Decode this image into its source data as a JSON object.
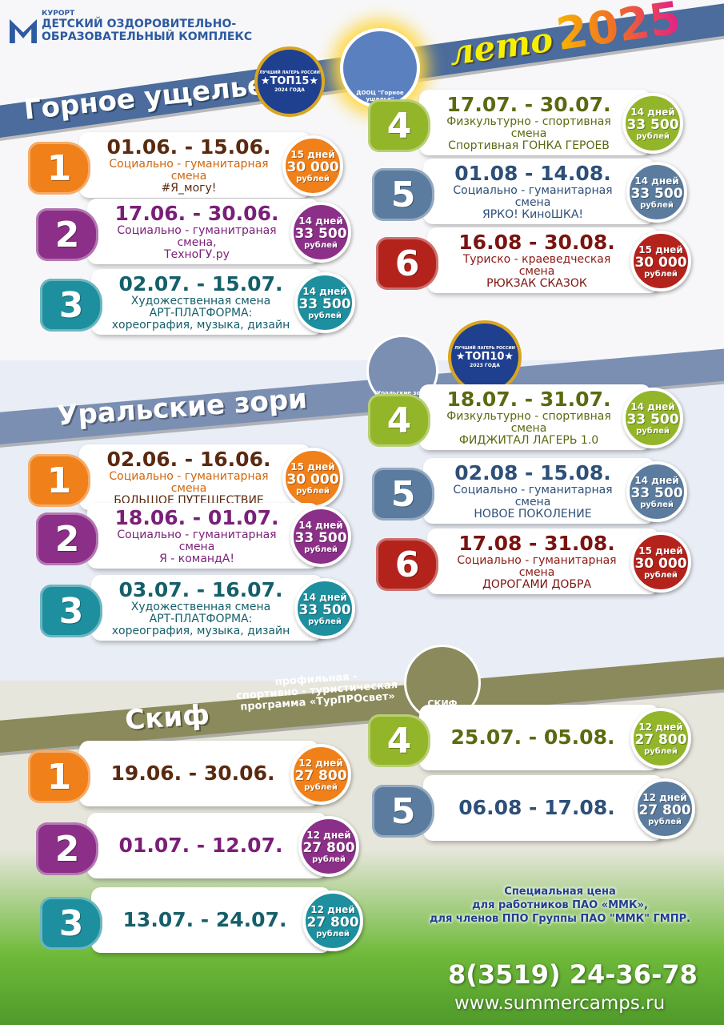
{
  "header": {
    "resort": "КУРОРТ",
    "line1": "ДЕТСКИЙ ОЗДОРОВИТЕЛЬНО-",
    "line2": "ОБРАЗОВАТЕЛЬНЫЙ КОМПЛЕКС",
    "logo": "ММК",
    "season_word": "лето",
    "season_year": "2025"
  },
  "colors": {
    "orange": "#f0801a",
    "purple": "#8c2f88",
    "teal": "#1d8f9e",
    "green": "#93b52a",
    "blue": "#5b7c9e",
    "red": "#b3231c"
  },
  "sections": [
    {
      "title": "Горное ущелье",
      "badge": {
        "top": "ЛУЧШИЙ ЛАГЕРЬ РОССИИ",
        "main": "★ТОП15★",
        "year": "2024 ГОДА"
      },
      "emblem": "ДООЦ \"Горное ущелье\"",
      "shifts": [
        {
          "num": "1",
          "dates": "01.06. - 15.06.",
          "lines": [
            "Социально - гуманитарная",
            "смена",
            "#Я_могу!"
          ],
          "days": "15 дней",
          "price": "30 000",
          "cur": "рублей"
        },
        {
          "num": "2",
          "dates": "17.06. - 30.06.",
          "lines": [
            "Социально - гуманитраная",
            "смена,",
            "ТехноГУ.ру"
          ],
          "days": "14 дней",
          "price": "33 500",
          "cur": "рублей"
        },
        {
          "num": "3",
          "dates": "02.07. - 15.07.",
          "lines": [
            "Художественная смена",
            "АРТ-ПЛАТФОРМА:",
            "хореография, музыка, дизайн"
          ],
          "days": "14 дней",
          "price": "33 500",
          "cur": "рублей"
        },
        {
          "num": "4",
          "dates": "17.07. - 30.07.",
          "lines": [
            "Физкультурно - спортивная",
            "смена",
            "Спортивная ГОНКА ГЕРОЕВ"
          ],
          "days": "14 дней",
          "price": "33 500",
          "cur": "рублей"
        },
        {
          "num": "5",
          "dates": "01.08 - 14.08.",
          "lines": [
            "Социально - гуманитарная",
            "смена",
            "ЯРКО! КиноШКА!"
          ],
          "days": "14 дней",
          "price": "33 500",
          "cur": "рублей"
        },
        {
          "num": "6",
          "dates": "16.08 - 30.08.",
          "lines": [
            "Туриско - краеведческая",
            "смена",
            "РЮКЗАК СКАЗОК"
          ],
          "days": "15 дней",
          "price": "30 000",
          "cur": "рублей"
        }
      ]
    },
    {
      "title": "Уральские зори",
      "badge": {
        "top": "ЛУЧШИЙ ЛАГЕРЬ РОССИИ",
        "main": "★ТОП10★",
        "year": "2023 ГОДА"
      },
      "emblem": "\"Уральские зори\"",
      "shifts": [
        {
          "num": "1",
          "dates": "02.06. - 16.06.",
          "lines": [
            "Социально - гуманитарная",
            "смена",
            "БОЛЬШОЕ ПУТЕШЕСТВИЕ"
          ],
          "days": "15 дней",
          "price": "30 000",
          "cur": "рублей"
        },
        {
          "num": "2",
          "dates": "18.06. - 01.07.",
          "lines": [
            "Социально - гуманитарная",
            "смена",
            "Я - командА!"
          ],
          "days": "14 дней",
          "price": "33 500",
          "cur": "рублей"
        },
        {
          "num": "3",
          "dates": "03.07. - 16.07.",
          "lines": [
            "Художественная смена",
            "АРТ-ПЛАТФОРМА:",
            "хореография, музыка, дизайн"
          ],
          "days": "14 дней",
          "price": "33 500",
          "cur": "рублей"
        },
        {
          "num": "4",
          "dates": "18.07. - 31.07.",
          "lines": [
            "Физкультурно - спортивная",
            "смена",
            "ФИДЖИТАЛ ЛАГЕРЬ 1.0"
          ],
          "days": "14 дней",
          "price": "33 500",
          "cur": "рублей"
        },
        {
          "num": "5",
          "dates": "02.08 - 15.08.",
          "lines": [
            "Социально - гуманитарная",
            "смена",
            "НОВОЕ ПОКОЛЕНИЕ"
          ],
          "days": "14 дней",
          "price": "33 500",
          "cur": "рублей"
        },
        {
          "num": "6",
          "dates": "17.08 - 31.08.",
          "lines": [
            "Социально - гуманитарная",
            "смена",
            "ДОРОГАМИ ДОБРА"
          ],
          "days": "15 дней",
          "price": "30 000",
          "cur": "рублей"
        }
      ]
    },
    {
      "title": "Скиф",
      "program": [
        "профильная -",
        "спортивно - туристическая",
        "программа «ТурПРОсвет»"
      ],
      "emblem": "СКИФ",
      "shifts": [
        {
          "num": "1",
          "dates": "19.06. - 30.06.",
          "lines": [],
          "days": "12 дней",
          "price": "27 800",
          "cur": "рублей"
        },
        {
          "num": "2",
          "dates": "01.07. - 12.07.",
          "lines": [],
          "days": "12 дней",
          "price": "27 800",
          "cur": "рублей"
        },
        {
          "num": "3",
          "dates": "13.07. - 24.07.",
          "lines": [],
          "days": "12 дней",
          "price": "27 800",
          "cur": "рублей"
        },
        {
          "num": "4",
          "dates": "25.07. - 05.08.",
          "lines": [],
          "days": "12 дней",
          "price": "27 800",
          "cur": "рублей"
        },
        {
          "num": "5",
          "dates": "06.08 - 17.08.",
          "lines": [],
          "days": "12 дней",
          "price": "27 800",
          "cur": "рублей"
        }
      ]
    }
  ],
  "footer": {
    "special": [
      "Специальная цена",
      "для работников ПАО «ММК»,",
      "для членов ППО Группы ПАО \"ММК\" ГМПР."
    ],
    "phone": "8(3519) 24-36-78",
    "site": "www.summercamps.ru"
  }
}
